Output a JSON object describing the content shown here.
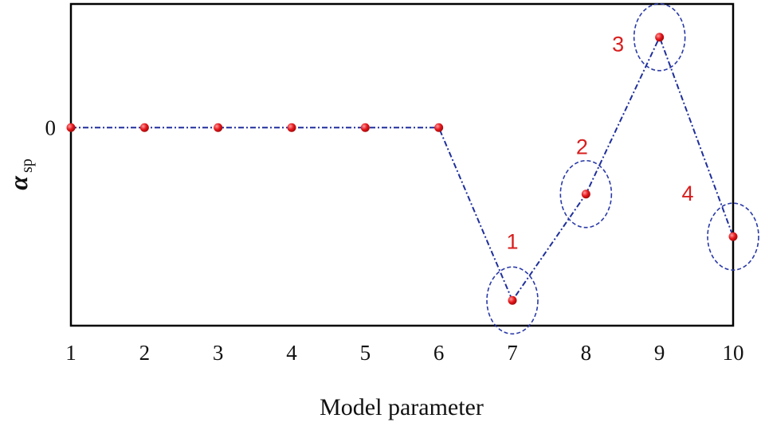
{
  "chart_data": {
    "type": "line",
    "title": "",
    "xlabel": "Model parameter",
    "ylabel": {
      "main": "α",
      "sub": "sp"
    },
    "x": [
      1,
      2,
      3,
      4,
      5,
      6,
      7,
      8,
      9,
      10
    ],
    "y": [
      0,
      0,
      0,
      0,
      0,
      0,
      -1.3,
      -0.5,
      0.68,
      -0.82
    ],
    "xlim": [
      1,
      10
    ],
    "ylim": [
      -1.49,
      0.93
    ],
    "xticks": [
      "1",
      "2",
      "3",
      "4",
      "5",
      "6",
      "7",
      "8",
      "9",
      "10"
    ],
    "yticks": [
      "0"
    ],
    "grid": false,
    "annotations": [
      {
        "label": "1",
        "x": 7
      },
      {
        "label": "2",
        "x": 8
      },
      {
        "label": "3",
        "x": 9
      },
      {
        "label": "4",
        "x": 10
      }
    ],
    "colors": {
      "line": "#1f2f9c",
      "marker": "#e3151a",
      "annotation_text": "#d81e1e",
      "circle": "#2a3aa8"
    }
  }
}
